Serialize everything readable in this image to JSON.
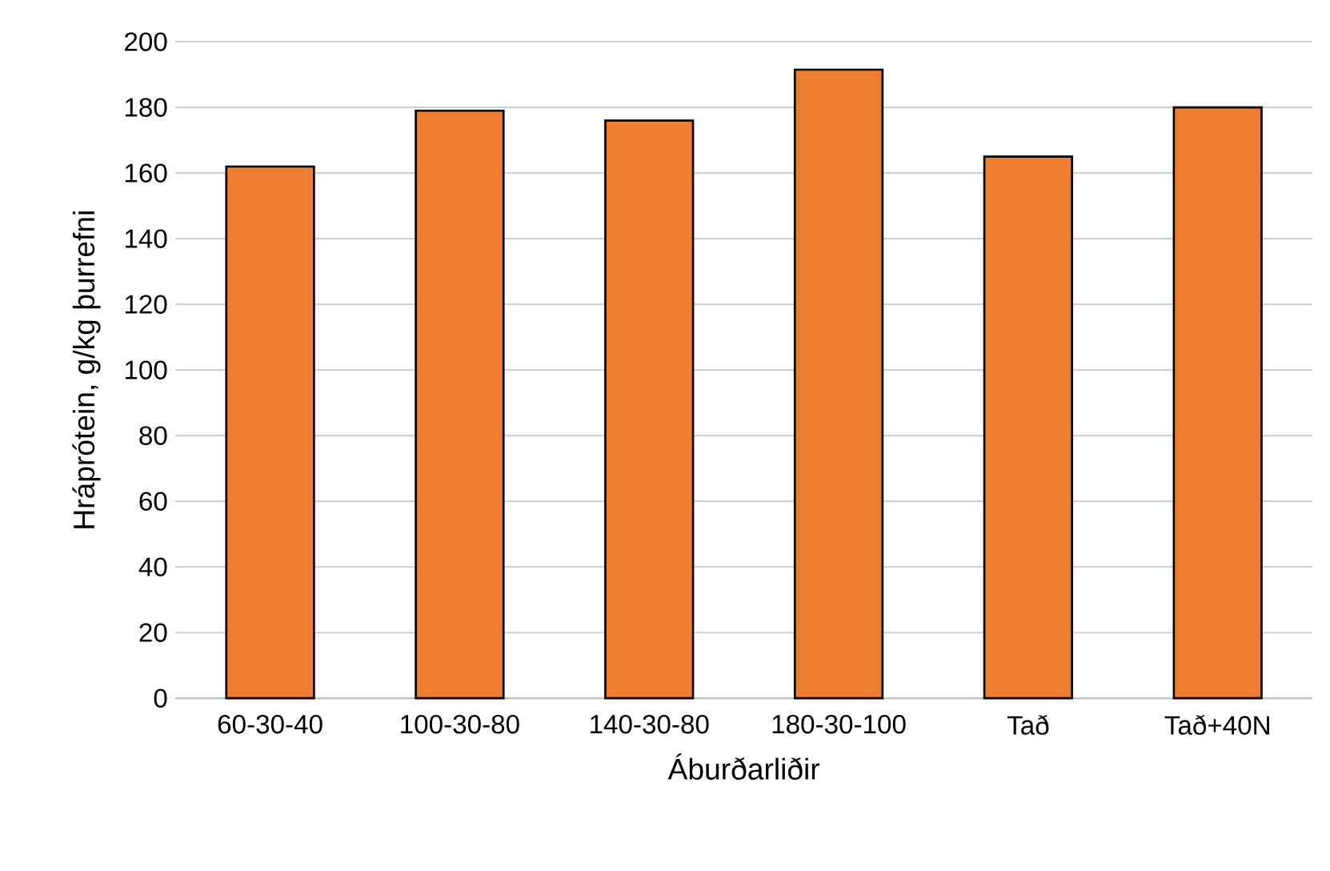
{
  "chart_data": {
    "type": "bar",
    "xlabel": "Áburðarliðir",
    "ylabel": "Hráprótein, g/kg þurrefni",
    "categories": [
      "60-30-40",
      "100-30-80",
      "140-30-80",
      "180-30-100",
      "Tað",
      "Tað+40N"
    ],
    "values": [
      162,
      179,
      176,
      191.5,
      165,
      180
    ],
    "color": "#ed7d31",
    "ylim": [
      0,
      200
    ],
    "yticks": [
      0,
      20,
      40,
      60,
      80,
      100,
      120,
      140,
      160,
      180,
      200
    ],
    "grid": "y"
  }
}
